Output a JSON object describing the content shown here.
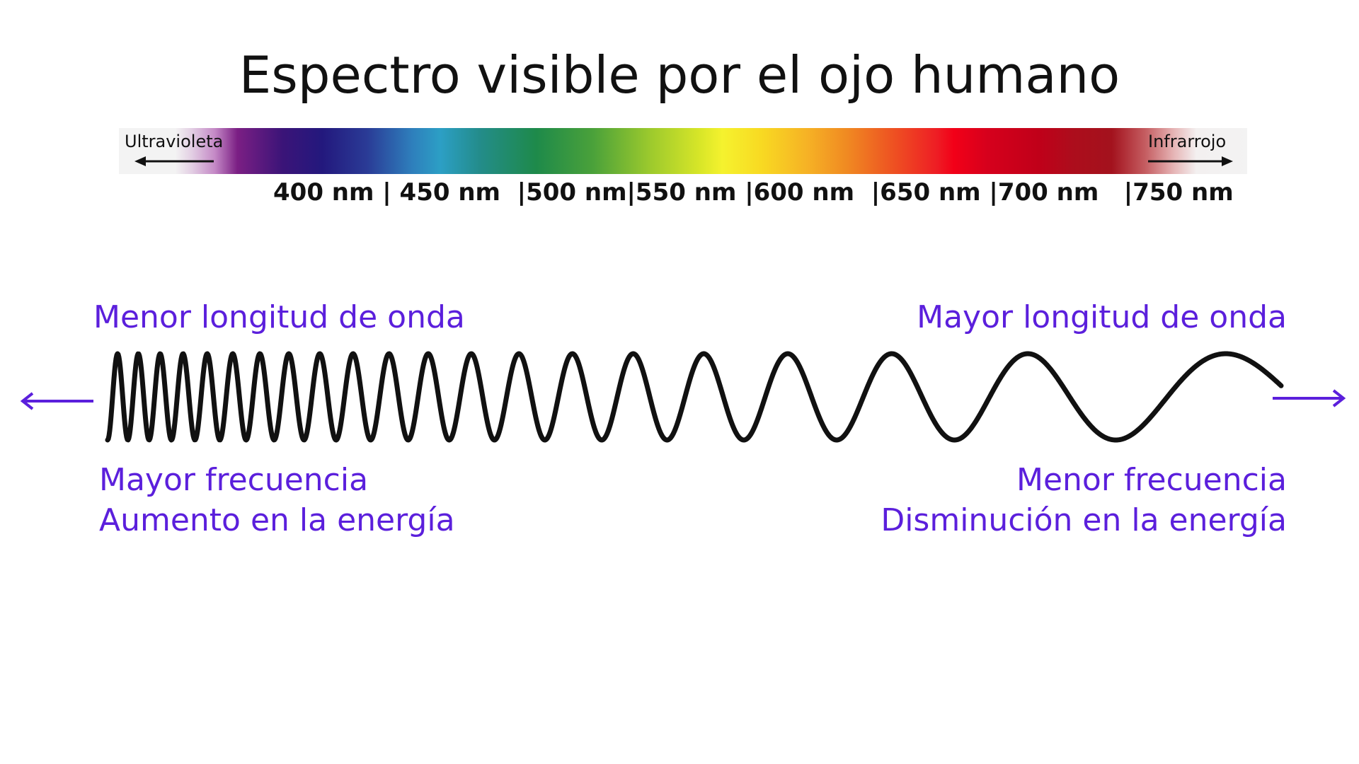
{
  "title": "Espectro visible por el ojo humano",
  "spectrum": {
    "left_label": "Ultravioleta",
    "right_label": "Infrarrojo",
    "tick_labels": "400 nm | 450 nm  |500 nm|550 nm |600 nm  |650 nm |700 nm   |750 nm"
  },
  "wave": {
    "left_top": "Menor longitud de onda",
    "right_top": "Mayor longitud de onda",
    "left_bottom": [
      "Mayor frecuencia",
      "Aumento en la energía"
    ],
    "right_bottom": [
      "Menor frecuencia",
      "Disminución en la energía"
    ]
  },
  "colors": {
    "accent": "#5b1fdc",
    "wave": "#111111"
  },
  "icons": {
    "left_arrow": "arrow-left-icon",
    "right_arrow": "arrow-right-icon"
  }
}
